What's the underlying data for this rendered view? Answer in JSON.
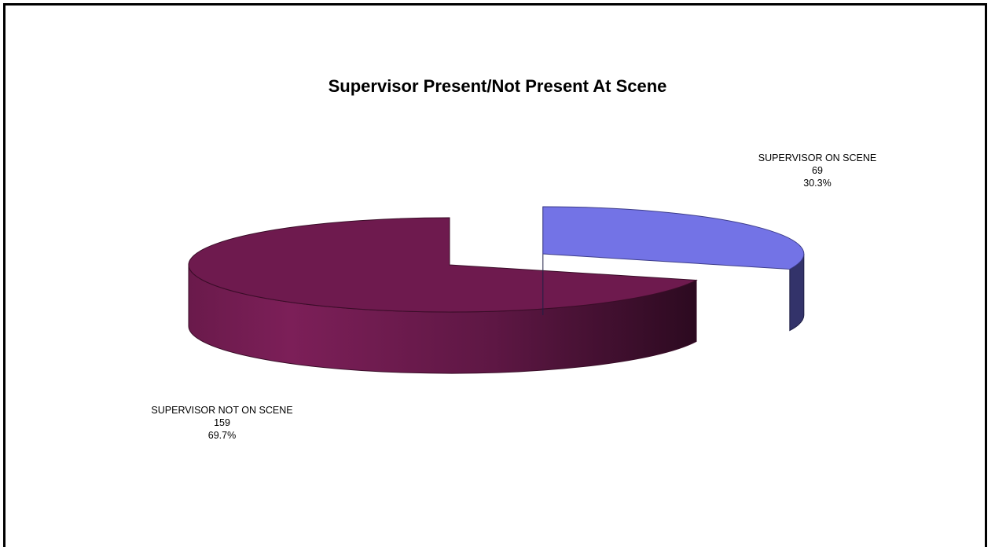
{
  "chart_data": {
    "type": "pie",
    "title": "Supervisor Present/Not Present At Scene",
    "slices": [
      {
        "label": "SUPERVISOR ON SCENE",
        "value": 69,
        "percent": "30.3%",
        "color": "#7373e6",
        "side_color": "#33336a"
      },
      {
        "label": "SUPERVISOR NOT ON SCENE",
        "value": 159,
        "percent": "69.7%",
        "color": "#6e1a4e",
        "side_color": "#5e1540"
      }
    ],
    "exploded_slice": "SUPERVISOR ON SCENE",
    "three_d": true,
    "legend": "none"
  }
}
